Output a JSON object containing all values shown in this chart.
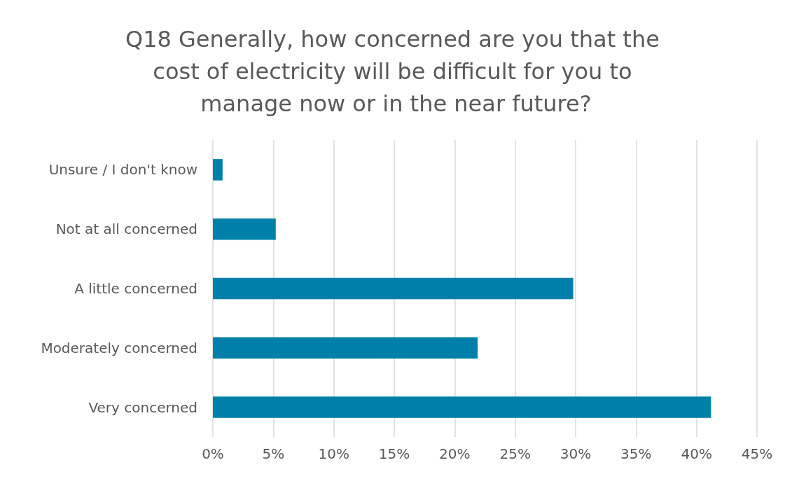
{
  "chart_data": {
    "type": "bar",
    "orientation": "horizontal",
    "title": "Q18 Generally, how concerned are you that the cost of electricity will be difficult for you to manage now or in the near future?",
    "categories": [
      "Unsure / I don't know",
      "Not at all concerned",
      "A little concerned",
      "Moderately concerned",
      "Very concerned"
    ],
    "values": [
      0.8,
      5.2,
      29.8,
      21.9,
      41.2
    ],
    "color": "#0080a8",
    "xlim": [
      0,
      45
    ],
    "xticks": [
      {
        "value": 0,
        "label": "0%"
      },
      {
        "value": 5,
        "label": "5%"
      },
      {
        "value": 10,
        "label": "10%"
      },
      {
        "value": 15,
        "label": "15%"
      },
      {
        "value": 20,
        "label": "20%"
      },
      {
        "value": 25,
        "label": "25%"
      },
      {
        "value": 30,
        "label": "30%"
      },
      {
        "value": 35,
        "label": "35%"
      },
      {
        "value": 40,
        "label": "40%"
      },
      {
        "value": 45,
        "label": "45%"
      }
    ],
    "grid": "x"
  }
}
